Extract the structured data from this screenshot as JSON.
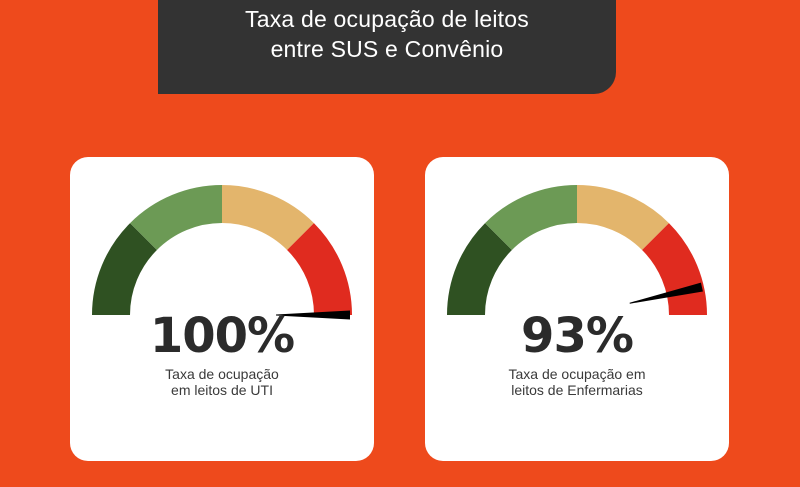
{
  "header": {
    "title_line1": "Taxa de ocupação de leitos",
    "title_line2": "entre SUS e Convênio"
  },
  "colors": {
    "background": "#ee4a1c",
    "header_bg": "#333333",
    "card_bg": "#ffffff",
    "zones": [
      "#2f5122",
      "#6c9a55",
      "#e3b56c",
      "#e02b1f"
    ],
    "needle": "#000000"
  },
  "chart_data": [
    {
      "type": "gauge",
      "value": 100,
      "value_label": "100%",
      "caption_line1": "Taxa de ocupação",
      "caption_line2": "em leitos de UTI",
      "range": [
        0,
        100
      ],
      "zones": 4
    },
    {
      "type": "gauge",
      "value": 93,
      "value_label": "93%",
      "caption_line1": "Taxa de ocupação em",
      "caption_line2": "leitos de Enfermarias",
      "range": [
        0,
        100
      ],
      "zones": 4
    }
  ]
}
